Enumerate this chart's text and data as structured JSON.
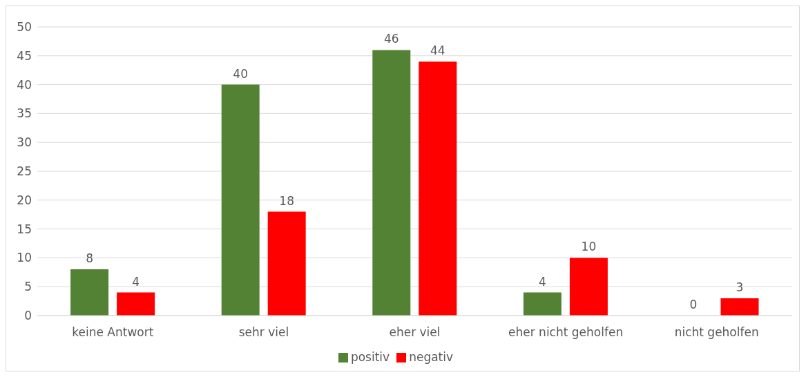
{
  "chart_data": {
    "type": "bar",
    "categories": [
      "keine Antwort",
      "sehr viel",
      "eher viel",
      "eher nicht geholfen",
      "nicht geholfen"
    ],
    "series": [
      {
        "name": "positiv",
        "color": "#548235",
        "values": [
          8,
          40,
          46,
          4,
          0
        ]
      },
      {
        "name": "negativ",
        "color": "#ff0000",
        "values": [
          4,
          18,
          44,
          10,
          3
        ]
      }
    ],
    "ylim": [
      0,
      50
    ],
    "yticks": [
      0,
      5,
      10,
      15,
      20,
      25,
      30,
      35,
      40,
      45,
      50
    ],
    "grid": "y",
    "legend": "bottom",
    "data_labels": true
  }
}
